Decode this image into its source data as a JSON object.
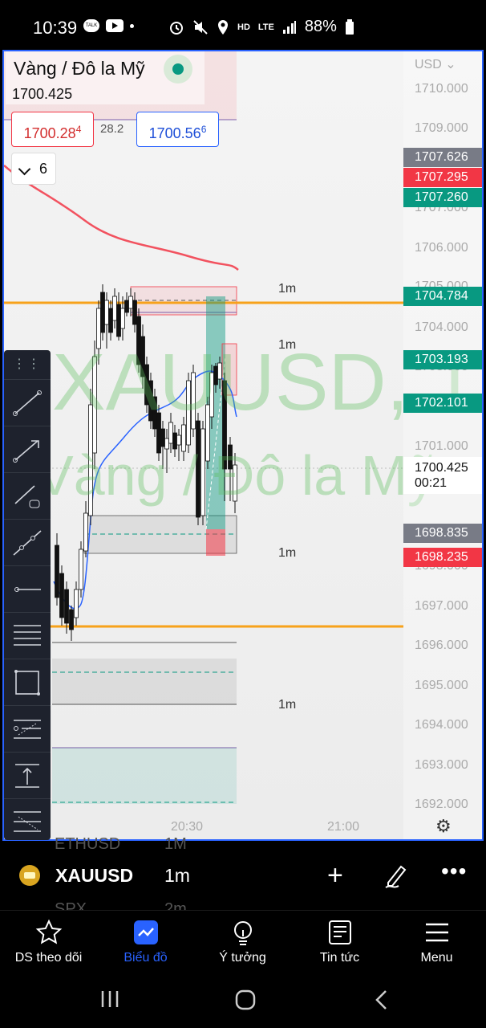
{
  "status_bar": {
    "time": "10:39",
    "battery": "88%",
    "signal": "LTE",
    "hd_voice": "HD"
  },
  "chart": {
    "symbol_name": "Vàng / Đô la Mỹ",
    "symbol_price": "1700.425",
    "bid": "1700.28",
    "bid_sup": "4",
    "spread": "28.2",
    "ask": "1700.56",
    "ask_sup": "6",
    "indicator_count": "6",
    "watermark_line1": "XAUUSD, 1",
    "watermark_line2": "Vàng / Đô la Mỹ",
    "currency": "USD",
    "axis_ticks": [
      "1710.000",
      "1709.000",
      "1707.000",
      "1706.000",
      "1705.000",
      "1704.000",
      "1703.000",
      "1701.000",
      "1698.000",
      "1697.000",
      "1696.000",
      "1695.000",
      "1694.000",
      "1693.000",
      "1692.000"
    ],
    "price_labels": [
      {
        "text": "1707.626",
        "color": "#787b86"
      },
      {
        "text": "1707.295",
        "color": "#f23645"
      },
      {
        "text": "1707.260",
        "color": "#089981"
      },
      {
        "text": "1704.784",
        "color": "#089981"
      },
      {
        "text": "1703.193",
        "color": "#089981"
      },
      {
        "text": "1702.101",
        "color": "#089981"
      },
      {
        "text": "1698.835",
        "color": "#787b86"
      },
      {
        "text": "1698.235",
        "color": "#f23645"
      }
    ],
    "current_price": "1700.425",
    "countdown": "00:21",
    "timeframe_labels": [
      "1m",
      "1m",
      "1m",
      "1m"
    ],
    "time_ticks": [
      "20:30",
      "21:00"
    ]
  },
  "toolbar": {
    "handle": "⋮⋮",
    "tools": [
      "trend-line",
      "arrow",
      "ray-callout",
      "extended-line",
      "horizontal-ray",
      "fib-retracement",
      "rectangle",
      "pitchfork",
      "long-position",
      "regression"
    ]
  },
  "symbol_bar": {
    "ticker": "XAUUSD",
    "interval": "1m",
    "ghost_top": "ETHUSD",
    "ghost_top_interval": "1M",
    "ghost_bottom": "SPX",
    "ghost_bottom_interval": "2m"
  },
  "nav": [
    {
      "label": "DS theo dõi",
      "icon": "star-icon"
    },
    {
      "label": "Biểu đồ",
      "icon": "chart-icon",
      "active": true
    },
    {
      "label": "Ý tưởng",
      "icon": "lightbulb-icon"
    },
    {
      "label": "Tin tức",
      "icon": "news-icon"
    },
    {
      "label": "Menu",
      "icon": "menu-icon"
    }
  ],
  "colors": {
    "accent": "#2962ff",
    "up": "#089981",
    "down": "#f23645",
    "level": "#f7a21b"
  }
}
